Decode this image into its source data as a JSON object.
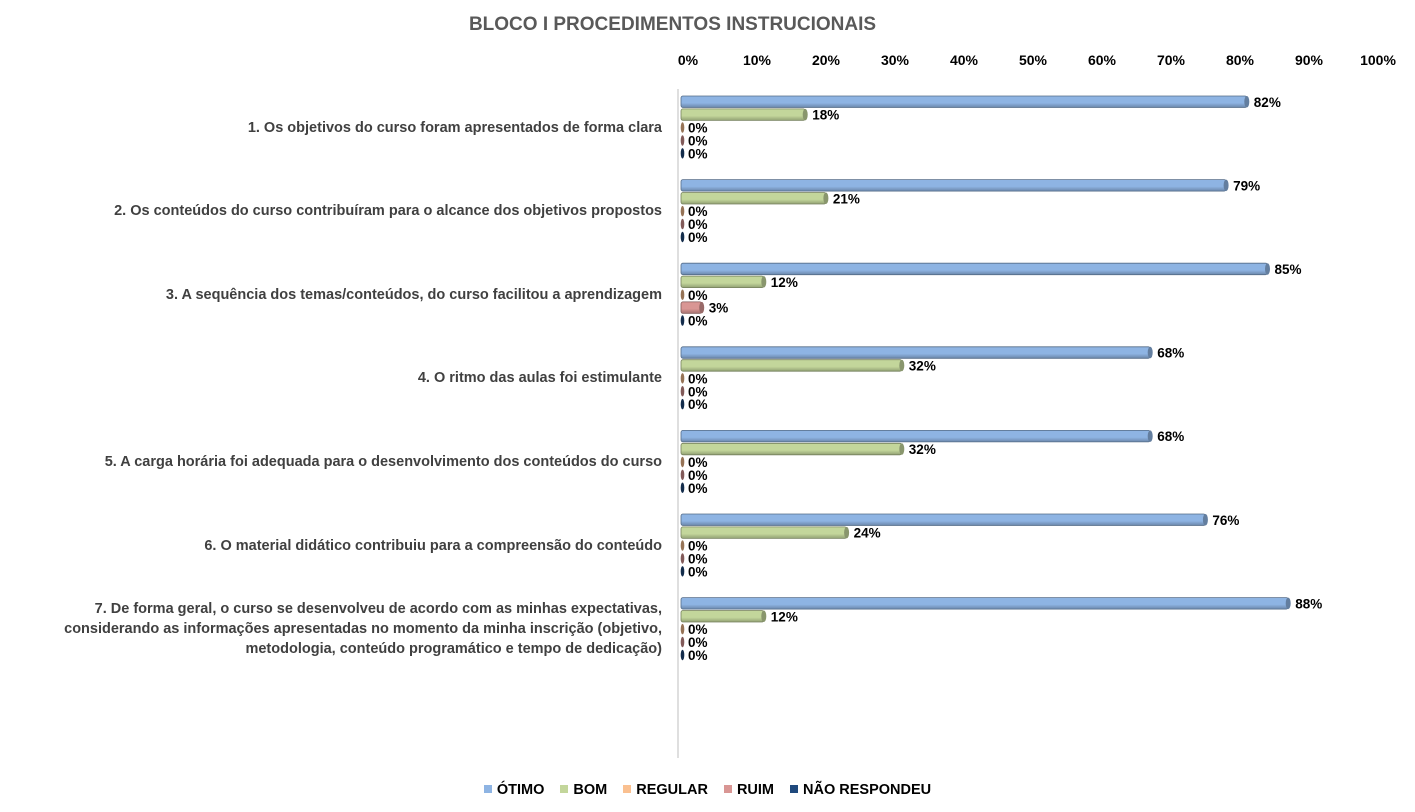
{
  "chart_data": {
    "type": "bar",
    "orientation": "horizontal",
    "title": "BLOCO I PROCEDIMENTOS INSTRUCIONAIS",
    "xlim": [
      0,
      100
    ],
    "x_ticks": [
      "0%",
      "10%",
      "20%",
      "30%",
      "40%",
      "50%",
      "60%",
      "70%",
      "80%",
      "90%",
      "100%"
    ],
    "x_axis_position": "top",
    "legend_position": "bottom",
    "grid": false,
    "categories": [
      "1. Os objetivos do curso foram apresentados de forma clara",
      "2. Os conteúdos do curso contribuíram para o alcance dos objetivos propostos",
      "3. A sequência dos temas/conteúdos, do curso facilitou a aprendizagem",
      "4. O ritmo das aulas foi estimulante",
      "5. A carga horária foi adequada para o desenvolvimento dos conteúdos do curso",
      "6. O material didático contribuiu para a compreensão do conteúdo",
      "7. De forma geral, o curso se desenvolveu de acordo com as minhas expectativas, considerando as informações apresentadas no momento da minha inscrição (objetivo, metodologia, conteúdo programático e tempo de dedicação)"
    ],
    "series": [
      {
        "name": "ÓTIMO",
        "color": "#8EB4E3",
        "values": [
          82,
          79,
          85,
          68,
          68,
          76,
          88
        ],
        "labels": [
          "82%",
          "79%",
          "85%",
          "68%",
          "68%",
          "76%",
          "88%"
        ]
      },
      {
        "name": "BOM",
        "color": "#C3D69B",
        "values": [
          18,
          21,
          12,
          32,
          32,
          24,
          12
        ],
        "labels": [
          "18%",
          "21%",
          "12%",
          "32%",
          "32%",
          "24%",
          "12%"
        ]
      },
      {
        "name": "REGULAR",
        "color": "#FAC090",
        "values": [
          0,
          0,
          0,
          0,
          0,
          0,
          0
        ],
        "labels": [
          "0%",
          "0%",
          "0%",
          "0%",
          "0%",
          "0%",
          "0%"
        ]
      },
      {
        "name": "RUIM",
        "color": "#D99694",
        "values": [
          0,
          0,
          3,
          0,
          0,
          0,
          0
        ],
        "labels": [
          "0%",
          "0%",
          "3%",
          "0%",
          "0%",
          "0%",
          "0%"
        ]
      },
      {
        "name": "NÃO RESPONDEU",
        "color": "#1F497D",
        "values": [
          0,
          0,
          0,
          0,
          0,
          0,
          0
        ],
        "labels": [
          "0%",
          "0%",
          "0%",
          "0%",
          "0%",
          "0%",
          "0%"
        ]
      }
    ]
  }
}
